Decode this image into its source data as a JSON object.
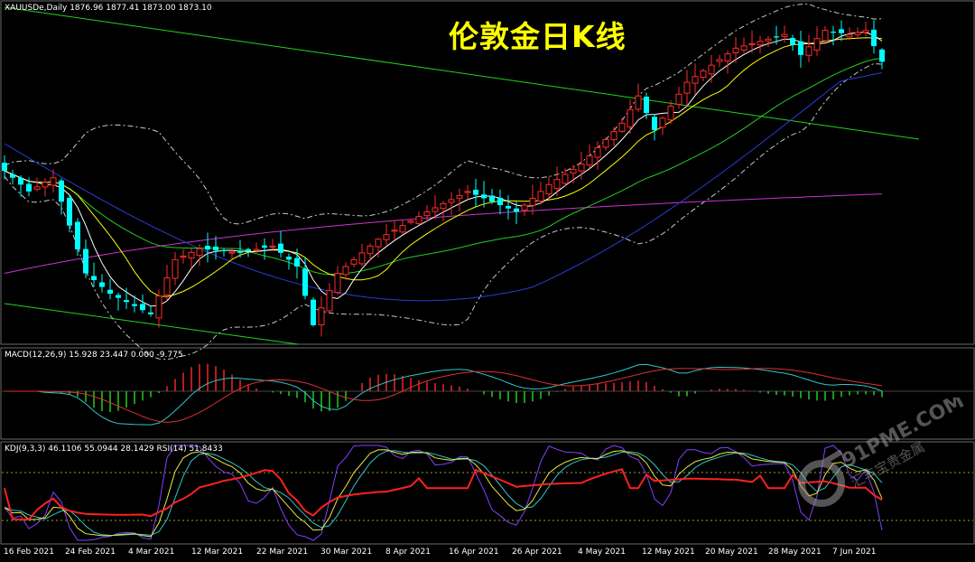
{
  "chart_data": [
    {
      "type": "candlestick",
      "symbol_label": "XAUUSDe,Daily",
      "ohlc_label": "1876.96 1877.41 1873.00 1873.10",
      "title": "伦敦金日K线",
      "x": [
        "16 Feb 2021",
        "24 Feb 2021",
        "4 Mar 2021",
        "12 Mar 2021",
        "22 Mar 2021",
        "30 Mar 2021",
        "8 Apr 2021",
        "16 Apr 2021",
        "26 Apr 2021",
        "4 May 2021",
        "12 May 2021",
        "20 May 2021",
        "28 May 2021",
        "7 Jun 2021"
      ],
      "overlays": [
        "moving-average-fast",
        "moving-average-mid",
        "moving-average-slow",
        "moving-average-long",
        "bollinger-bands",
        "trend-channel"
      ]
    },
    {
      "type": "bar",
      "label": "MACD(12,26,9) 15.928 23.447 0.000 -9.775"
    },
    {
      "type": "line",
      "label": "KDJ(9,3,3) 46.1106 55.0944 28.1429  RSI(14) 51.8433"
    }
  ],
  "colors": {
    "bull": "#ff2a2a",
    "bear": "#00ffff",
    "ma_fast": "#ffffff",
    "ma_mid": "#ffff00",
    "ma_slow": "#22cc22",
    "ma_long": "#2a3cd6",
    "ma_purple": "#cc33cc",
    "boll": "#c8c8c8",
    "trend": "#1fd41f",
    "title": "#ffff00"
  },
  "watermark": {
    "text_main": "91PME.COM",
    "text_sub": "汇丰宝贵金属"
  }
}
